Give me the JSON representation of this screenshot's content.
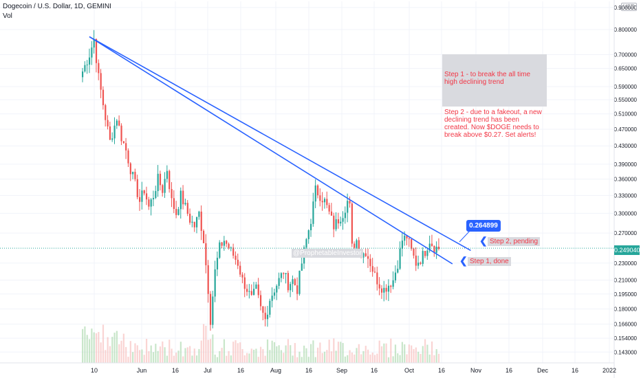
{
  "header": {
    "symbol_line": "Dogecoin / U.S. Dollar, 1D, GEMINI",
    "volume_label": "Vol"
  },
  "currency_badge": "USD",
  "annotations": {
    "note_step1": "Step 1 - to break the all time high declining trend",
    "note_step2": "Step 2 - due to a fakeout, a new declining trend has been created. Now $DOGE needs to break above $0.27. Set alerts!",
    "step2_label": "Step 2, pending",
    "step1_label": "Step 1, done",
    "watermark": "@ProphetableInvestor",
    "callout_value": "0.264899",
    "current_price": "0.249040"
  },
  "colors": {
    "up": "#26a69a",
    "down": "#ef5350",
    "trendline": "#2962ff",
    "note_bg": "#d9dadf",
    "note_text": "#f23645"
  },
  "chart_data": {
    "type": "candlestick",
    "y_scale": "log",
    "ylim": [
      0.135,
      0.93
    ],
    "y_ticks": [
      0.9,
      0.8,
      0.7,
      0.65,
      0.59,
      0.55,
      0.51,
      0.47,
      0.43,
      0.39,
      0.36,
      0.33,
      0.3,
      0.27,
      0.249,
      0.23,
      0.21,
      0.195,
      0.18,
      0.166,
      0.154,
      0.143
    ],
    "y_tick_labels": [
      "0.900000",
      "0.800000",
      "0.700000",
      "0.650000",
      "0.590000",
      "0.550000",
      "0.510000",
      "0.470000",
      "0.430000",
      "0.390000",
      "0.360000",
      "0.330000",
      "0.300000",
      "0.270000",
      "0.249040",
      "0.230000",
      "0.210000",
      "0.195000",
      "0.180000",
      "0.166000",
      "0.154000",
      "0.143000"
    ],
    "x_ticks": [
      "10",
      "Jun",
      "16",
      "Jul",
      "16",
      "Aug",
      "16",
      "Sep",
      "16",
      "Oct",
      "16",
      "Nov",
      "16",
      "Dec",
      "16",
      "2022"
    ],
    "price_path": [
      [
        0,
        0.64
      ],
      [
        3,
        0.7
      ],
      [
        5,
        0.76
      ],
      [
        7,
        0.62
      ],
      [
        10,
        0.5
      ],
      [
        12,
        0.44
      ],
      [
        15,
        0.5
      ],
      [
        17,
        0.45
      ],
      [
        19,
        0.42
      ],
      [
        21,
        0.38
      ],
      [
        23,
        0.35
      ],
      [
        25,
        0.32
      ],
      [
        27,
        0.34
      ],
      [
        29,
        0.31
      ],
      [
        31,
        0.33
      ],
      [
        33,
        0.36
      ],
      [
        35,
        0.34
      ],
      [
        37,
        0.38
      ],
      [
        39,
        0.32
      ],
      [
        41,
        0.3
      ],
      [
        43,
        0.33
      ],
      [
        45,
        0.31
      ],
      [
        47,
        0.29
      ],
      [
        49,
        0.28
      ],
      [
        51,
        0.3
      ],
      [
        53,
        0.26
      ],
      [
        55,
        0.2
      ],
      [
        56,
        0.17
      ],
      [
        58,
        0.22
      ],
      [
        60,
        0.25
      ],
      [
        62,
        0.26
      ],
      [
        64,
        0.25
      ],
      [
        66,
        0.24
      ],
      [
        68,
        0.23
      ],
      [
        70,
        0.21
      ],
      [
        72,
        0.2
      ],
      [
        74,
        0.19
      ],
      [
        76,
        0.2
      ],
      [
        78,
        0.18
      ],
      [
        80,
        0.17
      ],
      [
        82,
        0.19
      ],
      [
        84,
        0.2
      ],
      [
        86,
        0.21
      ],
      [
        88,
        0.22
      ],
      [
        90,
        0.205
      ],
      [
        92,
        0.21
      ],
      [
        94,
        0.2
      ],
      [
        96,
        0.23
      ],
      [
        98,
        0.26
      ],
      [
        100,
        0.29
      ],
      [
        102,
        0.34
      ],
      [
        104,
        0.33
      ],
      [
        106,
        0.32
      ],
      [
        108,
        0.3
      ],
      [
        110,
        0.28
      ],
      [
        112,
        0.29
      ],
      [
        114,
        0.3
      ],
      [
        116,
        0.32
      ],
      [
        117,
        0.31
      ],
      [
        118,
        0.25
      ],
      [
        120,
        0.26
      ],
      [
        122,
        0.24
      ],
      [
        124,
        0.245
      ],
      [
        126,
        0.23
      ],
      [
        128,
        0.215
      ],
      [
        130,
        0.205
      ],
      [
        132,
        0.2
      ],
      [
        134,
        0.205
      ],
      [
        136,
        0.21
      ],
      [
        138,
        0.23
      ],
      [
        140,
        0.26
      ],
      [
        142,
        0.265
      ],
      [
        144,
        0.245
      ],
      [
        146,
        0.23
      ],
      [
        148,
        0.235
      ],
      [
        150,
        0.245
      ],
      [
        152,
        0.26
      ],
      [
        154,
        0.25
      ],
      [
        156,
        0.249
      ]
    ],
    "trendlines": [
      {
        "from": [
          3,
          0.77
        ],
        "to": [
          170,
          0.246
        ]
      },
      {
        "from": [
          3,
          0.77
        ],
        "to": [
          162,
          0.229
        ]
      }
    ],
    "volume_note": "volume histogram at bottom"
  }
}
